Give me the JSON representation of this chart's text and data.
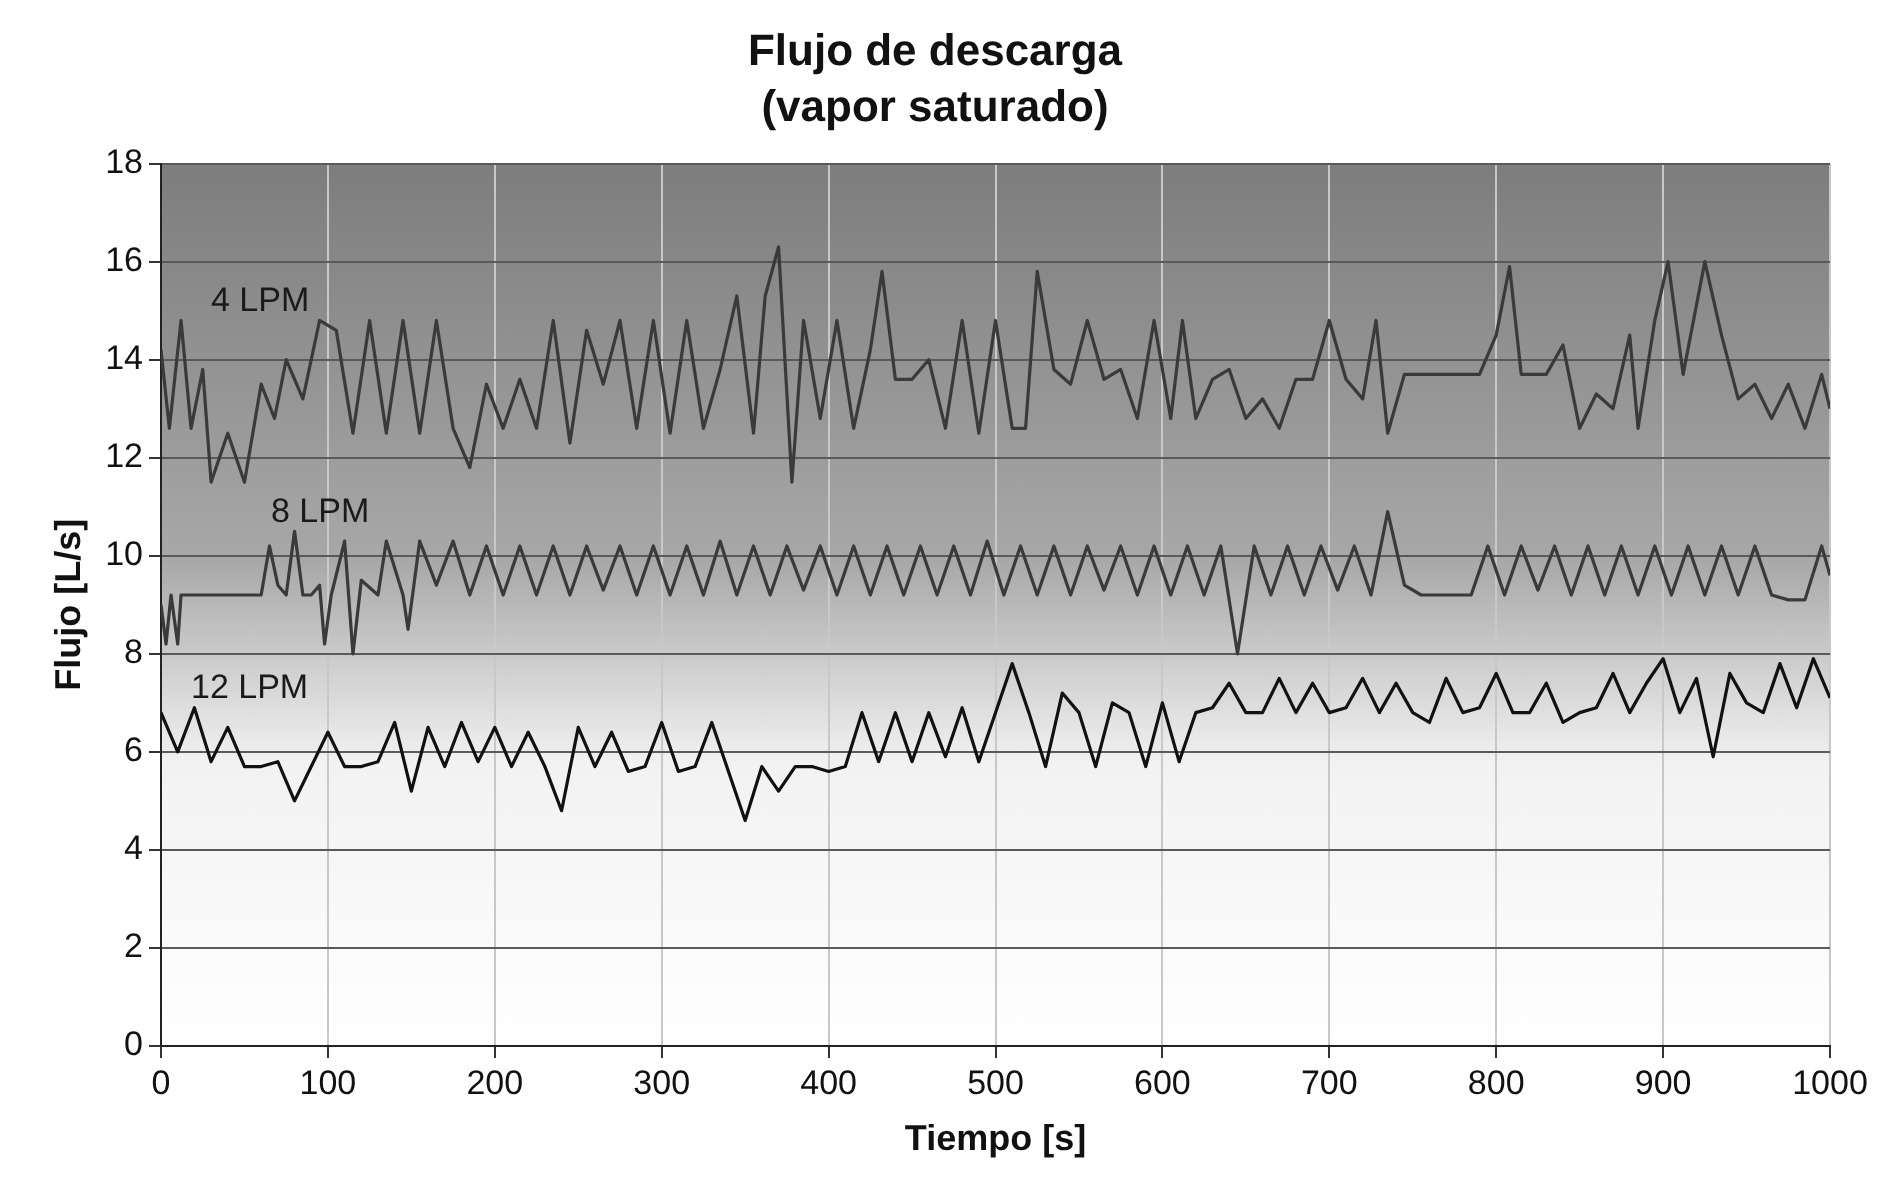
{
  "chart_data": {
    "type": "line",
    "title": "Flujo de descarga",
    "subtitle": "(vapor saturado)",
    "xlabel": "Tiempo [s]",
    "ylabel": "Flujo [L/s]",
    "xlim": [
      0,
      1000
    ],
    "xticks": [
      0,
      100,
      200,
      300,
      400,
      500,
      600,
      700,
      800,
      900,
      1000
    ],
    "ylim": [
      0,
      18
    ],
    "yticks": [
      0,
      2,
      4,
      6,
      8,
      10,
      12,
      14,
      16,
      18
    ],
    "grid": true,
    "legend": false,
    "marker": "none",
    "line_style": "solid",
    "series": [
      {
        "name": "4 LPM",
        "color": "#3a3a3a",
        "x": [
          0,
          5,
          12,
          18,
          25,
          30,
          40,
          50,
          60,
          68,
          75,
          85,
          95,
          105,
          115,
          125,
          135,
          145,
          155,
          165,
          175,
          185,
          195,
          205,
          215,
          225,
          235,
          245,
          255,
          265,
          275,
          285,
          295,
          305,
          315,
          325,
          335,
          345,
          355,
          362,
          370,
          378,
          385,
          395,
          405,
          415,
          425,
          432,
          440,
          450,
          460,
          470,
          480,
          490,
          500,
          510,
          518,
          525,
          535,
          545,
          555,
          565,
          575,
          585,
          595,
          605,
          612,
          620,
          630,
          640,
          650,
          660,
          670,
          680,
          690,
          700,
          710,
          720,
          728,
          735,
          745,
          760,
          775,
          790,
          800,
          808,
          815,
          830,
          840,
          850,
          860,
          870,
          880,
          885,
          895,
          903,
          912,
          925,
          935,
          945,
          955,
          965,
          975,
          985,
          995,
          1000
        ],
        "values": [
          14.2,
          12.6,
          14.8,
          12.6,
          13.8,
          11.5,
          12.5,
          11.5,
          13.5,
          12.8,
          14,
          13.2,
          14.8,
          14.6,
          12.5,
          14.8,
          12.5,
          14.8,
          12.5,
          14.8,
          12.6,
          11.8,
          13.5,
          12.6,
          13.6,
          12.6,
          14.8,
          12.3,
          14.6,
          13.5,
          14.8,
          12.6,
          14.8,
          12.5,
          14.8,
          12.6,
          13.8,
          15.3,
          12.5,
          15.3,
          16.3,
          11.5,
          14.8,
          12.8,
          14.8,
          12.6,
          14.2,
          15.8,
          13.6,
          13.6,
          14,
          12.6,
          14.8,
          12.5,
          14.8,
          12.6,
          12.6,
          15.8,
          13.8,
          13.5,
          14.8,
          13.6,
          13.8,
          12.8,
          14.8,
          12.8,
          14.8,
          12.8,
          13.6,
          13.8,
          12.8,
          13.2,
          12.6,
          13.6,
          13.6,
          14.8,
          13.6,
          13.2,
          14.8,
          12.5,
          13.7,
          13.7,
          13.7,
          13.7,
          14.5,
          15.9,
          13.7,
          13.7,
          14.3,
          12.6,
          13.3,
          13,
          14.5,
          12.6,
          14.8,
          16,
          13.7,
          16,
          14.5,
          13.2,
          13.5,
          12.8,
          13.5,
          12.6,
          13.7,
          13
        ]
      },
      {
        "name": "8 LPM",
        "color": "#3a3a3a",
        "x": [
          0,
          3,
          6,
          10,
          12,
          20,
          30,
          40,
          50,
          60,
          65,
          70,
          75,
          80,
          85,
          90,
          95,
          98,
          102,
          110,
          115,
          120,
          130,
          135,
          145,
          148,
          155,
          165,
          175,
          185,
          195,
          205,
          215,
          225,
          235,
          245,
          255,
          265,
          275,
          285,
          295,
          305,
          315,
          325,
          335,
          345,
          355,
          365,
          375,
          385,
          395,
          405,
          415,
          425,
          435,
          445,
          455,
          465,
          475,
          485,
          495,
          505,
          515,
          525,
          535,
          545,
          555,
          565,
          575,
          585,
          595,
          605,
          615,
          625,
          635,
          645,
          655,
          665,
          675,
          685,
          695,
          705,
          715,
          725,
          735,
          745,
          755,
          765,
          775,
          785,
          795,
          805,
          815,
          825,
          835,
          845,
          855,
          865,
          875,
          885,
          895,
          905,
          915,
          925,
          935,
          945,
          955,
          965,
          975,
          985,
          995,
          1000
        ],
        "values": [
          9,
          8.2,
          9.2,
          8.2,
          9.2,
          9.2,
          9.2,
          9.2,
          9.2,
          9.2,
          10.2,
          9.4,
          9.2,
          10.5,
          9.2,
          9.2,
          9.4,
          8.2,
          9.2,
          10.3,
          8,
          9.5,
          9.2,
          10.3,
          9.2,
          8.5,
          10.3,
          9.4,
          10.3,
          9.2,
          10.2,
          9.2,
          10.2,
          9.2,
          10.2,
          9.2,
          10.2,
          9.3,
          10.2,
          9.2,
          10.2,
          9.2,
          10.2,
          9.2,
          10.3,
          9.2,
          10.2,
          9.2,
          10.2,
          9.3,
          10.2,
          9.2,
          10.2,
          9.2,
          10.2,
          9.2,
          10.2,
          9.2,
          10.2,
          9.2,
          10.3,
          9.2,
          10.2,
          9.2,
          10.2,
          9.2,
          10.2,
          9.3,
          10.2,
          9.2,
          10.2,
          9.2,
          10.2,
          9.2,
          10.2,
          8,
          10.2,
          9.2,
          10.2,
          9.2,
          10.2,
          9.3,
          10.2,
          9.2,
          10.9,
          9.4,
          9.2,
          9.2,
          9.2,
          9.2,
          10.2,
          9.2,
          10.2,
          9.3,
          10.2,
          9.2,
          10.2,
          9.2,
          10.2,
          9.2,
          10.2,
          9.2,
          10.2,
          9.2,
          10.2,
          9.2,
          10.2,
          9.2,
          9.1,
          9.1,
          10.2,
          9.6
        ]
      },
      {
        "name": "12 LPM",
        "color": "#111111",
        "x": [
          0,
          10,
          20,
          30,
          40,
          50,
          60,
          70,
          80,
          90,
          100,
          110,
          120,
          130,
          140,
          150,
          160,
          170,
          180,
          190,
          200,
          210,
          220,
          230,
          240,
          250,
          260,
          270,
          280,
          290,
          300,
          310,
          320,
          330,
          340,
          350,
          360,
          370,
          380,
          390,
          400,
          410,
          420,
          430,
          440,
          450,
          460,
          470,
          480,
          490,
          500,
          510,
          520,
          530,
          540,
          550,
          560,
          570,
          580,
          590,
          600,
          610,
          620,
          630,
          640,
          650,
          660,
          670,
          680,
          690,
          700,
          710,
          720,
          730,
          740,
          750,
          760,
          770,
          780,
          790,
          800,
          810,
          820,
          830,
          840,
          850,
          860,
          870,
          880,
          890,
          900,
          910,
          920,
          930,
          940,
          950,
          960,
          970,
          980,
          990,
          1000
        ],
        "values": [
          6.8,
          6.0,
          6.9,
          5.8,
          6.5,
          5.7,
          5.7,
          5.8,
          5.0,
          5.7,
          6.4,
          5.7,
          5.7,
          5.8,
          6.6,
          5.2,
          6.5,
          5.7,
          6.6,
          5.8,
          6.5,
          5.7,
          6.4,
          5.7,
          4.8,
          6.5,
          5.7,
          6.4,
          5.6,
          5.7,
          6.6,
          5.6,
          5.7,
          6.6,
          5.6,
          4.6,
          5.7,
          5.2,
          5.7,
          5.7,
          5.6,
          5.7,
          6.8,
          5.8,
          6.8,
          5.8,
          6.8,
          5.9,
          6.9,
          5.8,
          6.8,
          7.8,
          6.8,
          5.7,
          7.2,
          6.8,
          5.7,
          7,
          6.8,
          5.7,
          7,
          5.8,
          6.8,
          6.9,
          7.4,
          6.8,
          6.8,
          7.5,
          6.8,
          7.4,
          6.8,
          6.9,
          7.5,
          6.8,
          7.4,
          6.8,
          6.6,
          7.5,
          6.8,
          6.9,
          7.6,
          6.8,
          6.8,
          7.4,
          6.6,
          6.8,
          6.9,
          7.6,
          6.8,
          7.4,
          7.9,
          6.8,
          7.5,
          5.9,
          7.6,
          7,
          6.8,
          7.8,
          6.9,
          7.9,
          7.1
        ]
      }
    ]
  }
}
